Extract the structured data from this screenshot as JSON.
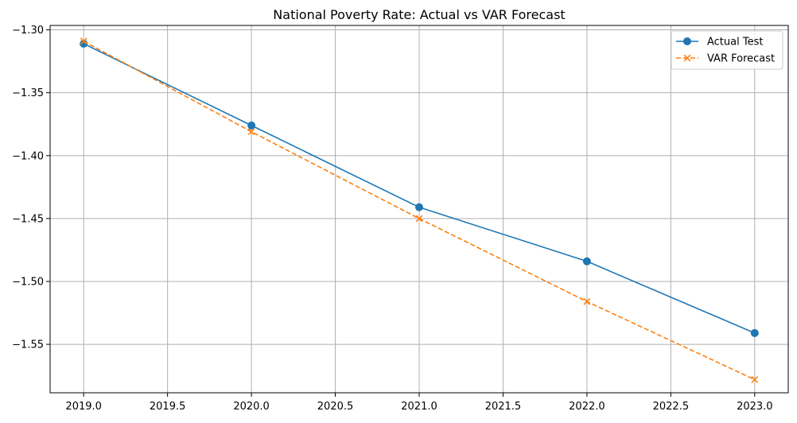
{
  "chart_data": {
    "type": "line",
    "title": "National Poverty Rate: Actual vs VAR Forecast",
    "xlabel": "",
    "ylabel": "",
    "xlim": [
      2018.8,
      2023.2
    ],
    "ylim": [
      -1.5885,
      -1.2965
    ],
    "xticks": [
      2019.0,
      2019.5,
      2020.0,
      2020.5,
      2021.0,
      2021.5,
      2022.0,
      2022.5,
      2023.0
    ],
    "xtick_labels": [
      "2019.0",
      "2019.5",
      "2020.0",
      "2020.5",
      "2021.0",
      "2021.5",
      "2022.0",
      "2022.5",
      "2023.0"
    ],
    "yticks": [
      -1.3,
      -1.35,
      -1.4,
      -1.45,
      -1.5,
      -1.55
    ],
    "ytick_labels": [
      "−1.30",
      "−1.35",
      "−1.40",
      "−1.45",
      "−1.50",
      "−1.55"
    ],
    "grid": true,
    "legend_position": "top-right",
    "series": [
      {
        "name": "Actual Test",
        "color": "#1f77b4",
        "line_style": "solid",
        "marker": "circle",
        "x": [
          2019,
          2020,
          2021,
          2022,
          2023
        ],
        "y": [
          -1.311,
          -1.376,
          -1.441,
          -1.484,
          -1.541
        ]
      },
      {
        "name": "VAR Forecast",
        "color": "#ff7f0e",
        "line_style": "dashed",
        "marker": "x",
        "x": [
          2019,
          2020,
          2021,
          2022,
          2023
        ],
        "y": [
          -1.309,
          -1.381,
          -1.45,
          -1.516,
          -1.578
        ]
      }
    ]
  }
}
